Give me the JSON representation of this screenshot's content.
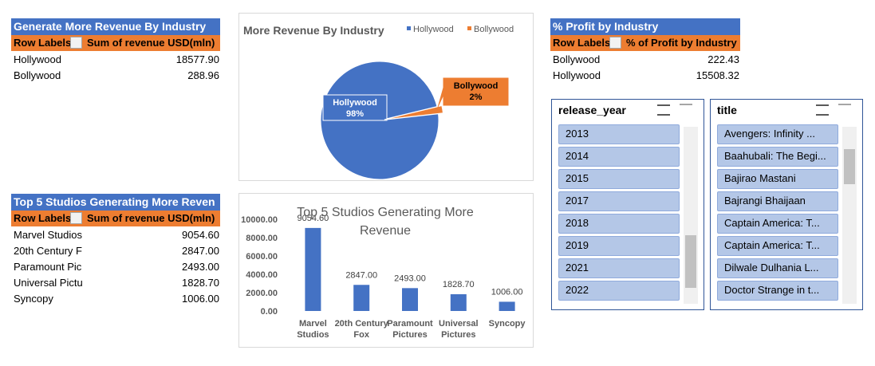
{
  "pivot_tables": [
    {
      "title": "Generate More Revenue By Industry",
      "headers": [
        "Row Labels",
        "Sum of revenue USD(mln)"
      ],
      "rows": [
        [
          "Hollywood",
          "18577.90"
        ],
        [
          "Bollywood",
          "288.96"
        ]
      ]
    },
    {
      "title": "Top 5 Studios Generating More Reven",
      "headers": [
        "Row Labels",
        "Sum of revenue USD(mln)"
      ],
      "rows": [
        [
          "Marvel Studios",
          "9054.60"
        ],
        [
          "20th Century F",
          "2847.00"
        ],
        [
          "Paramount Pic",
          "2493.00"
        ],
        [
          "Universal Pictu",
          "1828.70"
        ],
        [
          "Syncopy",
          "1006.00"
        ]
      ]
    },
    {
      "title": "% Profit by Industry",
      "headers": [
        "Row Labels",
        "% of Profit by Industry"
      ],
      "rows": [
        [
          "Bollywood",
          "222.43"
        ],
        [
          "Hollywood",
          "15508.32"
        ]
      ]
    }
  ],
  "chart_data": [
    {
      "type": "pie",
      "title": "More Revenue By Industry",
      "legend": "top",
      "series": [
        {
          "name": "Hollywood",
          "color": "#4472c4",
          "values": [
            98
          ],
          "value_labels": [
            "98%"
          ]
        },
        {
          "name": "Bollywood",
          "color": "#ed7d31",
          "values": [
            2
          ],
          "value_labels": [
            "2%"
          ]
        }
      ]
    },
    {
      "type": "bar",
      "title": "Top 5 Studios Generating More Revenue",
      "color": "#4472c4",
      "categories": [
        "Marvel Studios",
        "20th Century Fox",
        "Paramount Pictures",
        "Universal Pictures",
        "Syncopy"
      ],
      "values": [
        9054.6,
        2847,
        2493,
        1828.7,
        1006
      ],
      "value_labels": [
        "9054.60",
        "2847.00",
        "2493.00",
        "1828.70",
        "1006.00"
      ],
      "ylim": [
        0,
        10000
      ],
      "yticks": [
        {
          "value": 0,
          "label": "0.00"
        },
        {
          "value": 2000,
          "label": "2000.00"
        },
        {
          "value": 4000,
          "label": "4000.00"
        },
        {
          "value": 6000,
          "label": "6000.00"
        },
        {
          "value": 8000,
          "label": "8000.00"
        },
        {
          "value": 10000,
          "label": "10000.00"
        }
      ]
    }
  ],
  "slicers": [
    {
      "title": "release_year",
      "items": [
        "2013",
        "2014",
        "2015",
        "2017",
        "2018",
        "2019",
        "2021",
        "2022"
      ]
    },
    {
      "title": "title",
      "items": [
        "Avengers: Infinity ...",
        "Baahubali: The Begi...",
        "Bajirao Mastani",
        "Bajrangi Bhaijaan",
        "Captain America: T...",
        "Captain America: T...",
        "Dilwale Dulhania L...",
        "Doctor Strange in t..."
      ]
    }
  ]
}
